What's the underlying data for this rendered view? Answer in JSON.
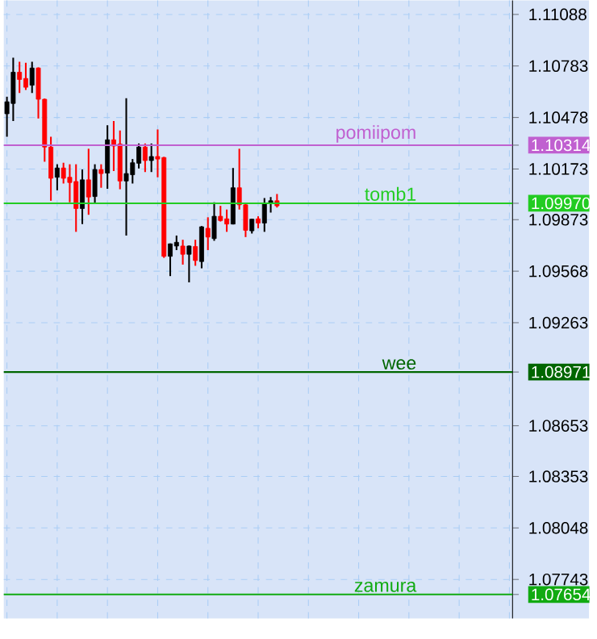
{
  "chart_data": {
    "type": "candlestick",
    "categories": [
      null,
      null,
      null,
      null,
      null,
      null,
      null,
      null,
      null,
      null,
      null,
      null,
      null,
      null,
      null,
      null,
      null,
      null,
      null,
      null,
      null,
      null,
      null,
      null,
      null,
      null,
      null,
      null,
      null,
      null,
      null,
      null,
      null,
      null,
      null,
      null,
      null,
      null,
      null,
      null,
      null,
      null,
      null,
      null,
      null,
      null,
      null,
      null,
      null,
      null,
      null,
      null,
      null,
      null,
      null,
      null,
      null,
      null,
      null,
      null,
      null,
      null,
      null,
      null,
      null,
      null,
      null,
      null,
      null,
      null,
      null,
      null,
      null,
      null,
      null,
      null,
      null,
      null,
      null,
      null,
      null
    ],
    "ohlc": [
      [
        1.105,
        1.10601,
        1.10364,
        1.10571
      ],
      [
        1.10561,
        1.10832,
        1.10457,
        1.10746
      ],
      [
        1.10746,
        1.10808,
        1.10623,
        1.10703
      ],
      [
        1.10709,
        1.10802,
        1.10641,
        1.10657
      ],
      [
        1.10669,
        1.10808,
        1.10623,
        1.10771
      ],
      [
        1.10771,
        1.10775,
        1.10472,
        1.10586
      ],
      [
        1.10586,
        1.1059,
        1.10216,
        1.10303
      ],
      [
        1.10303,
        1.10364,
        1.09985,
        1.10118
      ],
      [
        1.10124,
        1.10201,
        1.10047,
        1.10179
      ],
      [
        1.10179,
        1.1021,
        1.10087,
        1.10118
      ],
      [
        1.10124,
        1.10201,
        1.09976,
        1.10093
      ],
      [
        1.10099,
        1.10201,
        1.09801,
        1.09939
      ],
      [
        1.09939,
        1.1017,
        1.09847,
        1.10109
      ],
      [
        1.10109,
        1.10293,
        1.09902,
        1.10007
      ],
      [
        1.1001,
        1.10201,
        1.0997,
        1.1017
      ],
      [
        1.1017,
        1.10201,
        1.10062,
        1.10146
      ],
      [
        1.10149,
        1.10432,
        1.10056,
        1.10346
      ],
      [
        1.10346,
        1.10457,
        1.10161,
        1.10309
      ],
      [
        1.10321,
        1.10401,
        1.10053,
        1.10102
      ],
      [
        1.10102,
        1.10592,
        1.09779,
        1.10146
      ],
      [
        1.10139,
        1.10232,
        1.10087,
        1.1021
      ],
      [
        1.10207,
        1.10324,
        1.10176,
        1.10303
      ],
      [
        1.10303,
        1.10324,
        1.10155,
        1.10223
      ],
      [
        1.10223,
        1.10324,
        1.10155,
        1.10247
      ],
      [
        1.10247,
        1.10407,
        1.10124,
        1.10232
      ],
      [
        1.10241,
        1.10245,
        1.09647,
        1.09656
      ],
      [
        1.09656,
        1.09732,
        1.09539,
        1.0973
      ],
      [
        1.09717,
        1.09779,
        1.09693,
        1.09739
      ],
      [
        1.09717,
        1.09754,
        1.09607,
        1.09668
      ],
      [
        1.09668,
        1.0972,
        1.09502,
        1.09717
      ],
      [
        1.09714,
        1.09754,
        1.096,
        1.09631
      ],
      [
        1.09625,
        1.09835,
        1.09585,
        1.09831
      ],
      [
        1.09822,
        1.09887,
        1.09693,
        1.0977
      ],
      [
        1.09761,
        1.09976,
        1.09748,
        1.09893
      ],
      [
        1.09893,
        1.09955,
        1.09862,
        1.09868
      ],
      [
        1.09878,
        1.09933,
        1.09801,
        1.09847
      ],
      [
        1.09847,
        1.10179,
        1.09845,
        1.10062
      ],
      [
        1.10062,
        1.10293,
        1.09933,
        1.09961
      ],
      [
        1.09961,
        1.09965,
        1.0977,
        1.0981
      ],
      [
        1.09807,
        1.09878,
        1.09791,
        1.09876
      ],
      [
        1.09878,
        1.09893,
        1.09822,
        1.09853
      ],
      [
        1.09853,
        1.10001,
        1.09801,
        1.0997
      ],
      [
        1.0997,
        1.10007,
        1.09915,
        1.09985
      ],
      [
        1.09985,
        1.10025,
        1.09945,
        1.09955
      ],
      null,
      null,
      null,
      null,
      null,
      null,
      null,
      null,
      null,
      null,
      null,
      null,
      null,
      null,
      null,
      null,
      null,
      null,
      null,
      null,
      null,
      null,
      null,
      null,
      null,
      null,
      null,
      null,
      null,
      null,
      null,
      null,
      null,
      null,
      null,
      null,
      null
    ],
    "colors": [
      "#000000",
      "#000000",
      "#ff0000",
      "#ff0000",
      "#000000",
      "#ff0000",
      "#ff0000",
      "#ff0000",
      "#000000",
      "#ff0000",
      "#ff0000",
      "#ff0000",
      "#000000",
      "#ff0000",
      "#000000",
      "#ff0000",
      "#000000",
      "#ff0000",
      "#ff0000",
      "#000000",
      "#000000",
      "#000000",
      "#ff0000",
      "#000000",
      "#ff0000",
      "#ff0000",
      "#000000",
      "#000000",
      "#ff0000",
      "#000000",
      "#ff0000",
      "#000000",
      "#ff0000",
      "#000000",
      "#ff0000",
      "#ff0000",
      "#000000",
      "#ff0000",
      "#ff0000",
      "#000000",
      "#ff0000",
      "#000000",
      "#000000",
      "#ff0000",
      null,
      null,
      null,
      null,
      null,
      null,
      null,
      null,
      null,
      null,
      null,
      null,
      null,
      null,
      null,
      null,
      null,
      null,
      null,
      null,
      null,
      null,
      null,
      null,
      null,
      null,
      null,
      null,
      null,
      null,
      null,
      null,
      null,
      null,
      null,
      null,
      null
    ],
    "ylim": [
      1.07512,
      1.11171
    ],
    "yticks": [
      1.07654,
      1.07743,
      1.08048,
      1.08353,
      1.08653,
      1.08971,
      1.09263,
      1.09568,
      1.09873,
      {
        "value": 1.0997,
        "label": "1.09970"
      },
      1.10173,
      1.10314,
      1.10478,
      1.10783,
      1.11088
    ],
    "ref_lines": [
      {
        "axis": "y",
        "value": 1.10314,
        "label": "pomiipom",
        "color": "#c060d0"
      },
      {
        "axis": "y",
        "value": 1.0997,
        "label": "tomb1",
        "color": "#22cc22"
      },
      {
        "axis": "y",
        "value": 1.08971,
        "label": "wee",
        "color": "#006600"
      },
      {
        "axis": "y",
        "value": 1.07654,
        "label": "zamura",
        "color": "#11aa11"
      }
    ],
    "grid": true,
    "tick_labels": "y"
  }
}
